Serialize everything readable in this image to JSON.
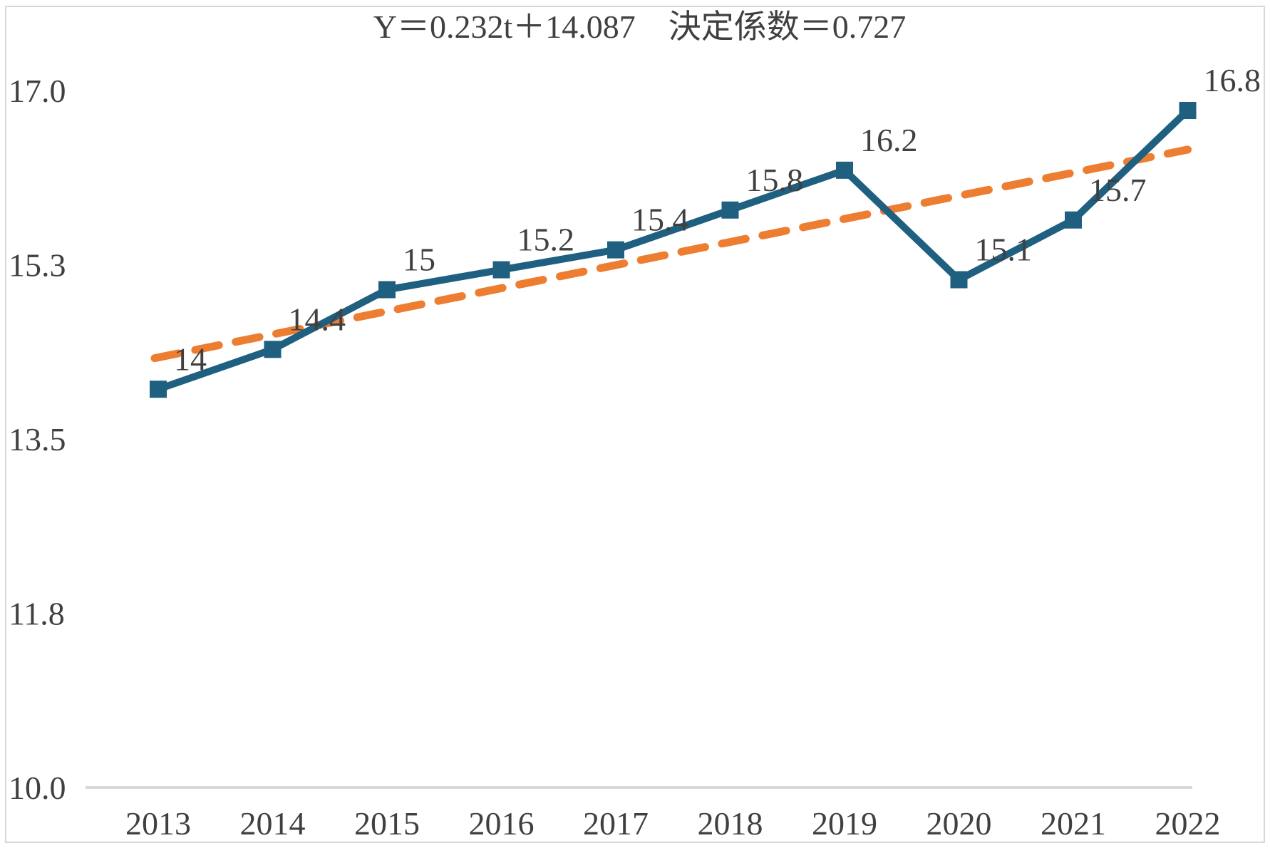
{
  "page": {
    "background_color": "#ffffff",
    "border_color": "#d7d7d7"
  },
  "chart_data": {
    "type": "line",
    "title": "Y＝0.232t＋14.087　決定係数＝0.727",
    "categories": [
      "2013",
      "2014",
      "2015",
      "2016",
      "2017",
      "2018",
      "2019",
      "2020",
      "2021",
      "2022"
    ],
    "series": [
      {
        "name": "actual-values",
        "type": "line",
        "color": "#1f5f80",
        "marker": "square",
        "values": [
          14,
          14.4,
          15,
          15.2,
          15.4,
          15.8,
          16.2,
          15.1,
          15.7,
          16.8
        ],
        "data_labels": [
          "14",
          "14.4",
          "15",
          "15.2",
          "15.4",
          "15.8",
          "16.2",
          "15.1",
          "15.7",
          "16.8"
        ]
      },
      {
        "name": "linear-trendline",
        "type": "trendline",
        "color": "#ed7d31",
        "line_style": "dashed",
        "slope": 0.232,
        "intercept": 14.087,
        "r_squared": 0.727
      }
    ],
    "xlabel": "",
    "ylabel": "",
    "ylim": [
      10,
      17
    ],
    "ytick_positions": [
      17.0,
      15.25,
      13.5,
      11.75,
      10.0
    ],
    "ytick_labels": [
      "17.0",
      "15.3",
      "13.5",
      "11.8",
      "10.0"
    ],
    "legend": "none",
    "grid": "baseline-only",
    "text_color": "#404040",
    "gridline_color": "#d9d9d9"
  }
}
